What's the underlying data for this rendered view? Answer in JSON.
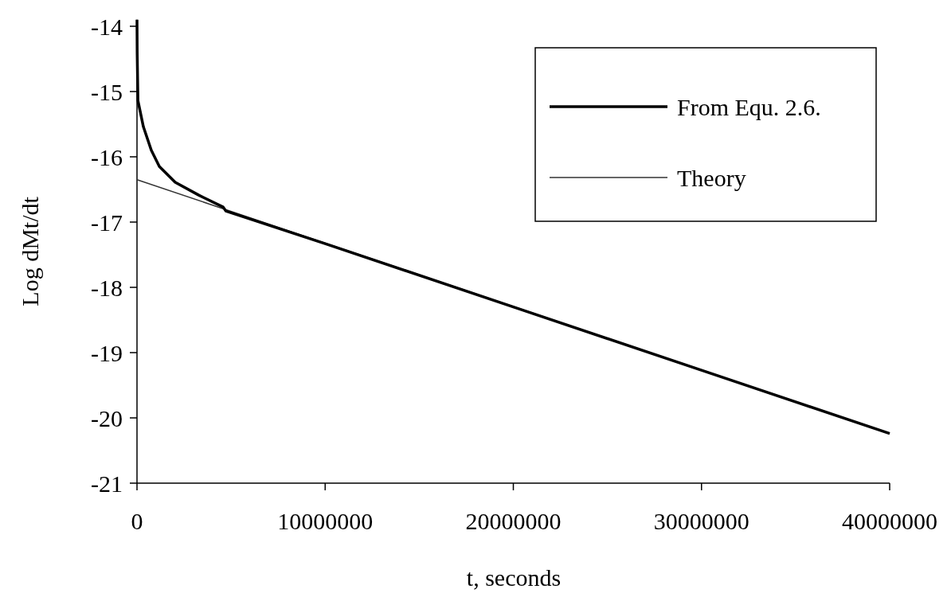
{
  "chart_data": {
    "type": "line",
    "xlabel": "t, seconds",
    "ylabel": "Log dMt/dt",
    "xlim": [
      0,
      40000000
    ],
    "ylim": [
      -21,
      -13.9
    ],
    "xticks": [
      0,
      10000000,
      20000000,
      30000000,
      40000000
    ],
    "yticks": [
      -21,
      -20,
      -19,
      -18,
      -17,
      -16,
      -15,
      -14
    ],
    "grid": false,
    "legend": "top right",
    "marker": "none",
    "line_style": "solid",
    "series": [
      {
        "name": "From Equ. 2.6.",
        "color": "#000000",
        "x": [
          0,
          10000,
          50000,
          340000,
          760000,
          1190000,
          2030000,
          3300000,
          4580000,
          4720000,
          10000000,
          20000000,
          30000000,
          40000000
        ],
        "values": [
          -13.9,
          -14.41,
          -15.14,
          -15.54,
          -15.9,
          -16.15,
          -16.39,
          -16.59,
          -16.77,
          -16.83,
          -17.33,
          -18.3,
          -19.27,
          -20.24
        ]
      },
      {
        "name": "Theory",
        "color": "#333333",
        "x": [
          0,
          40000000
        ],
        "values": [
          -16.35,
          -20.24
        ]
      }
    ]
  }
}
